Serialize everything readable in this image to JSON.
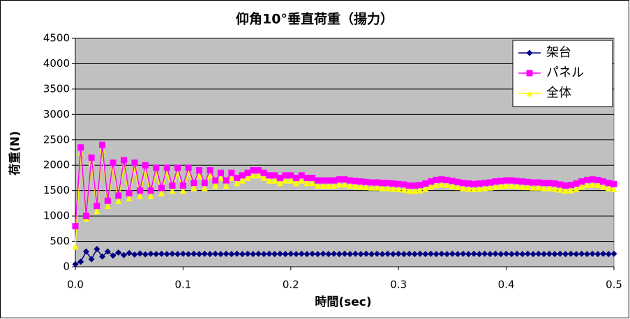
{
  "chart_data": {
    "type": "line",
    "title": "仰角10°垂直荷重（揚力）",
    "x_label": "時間(sec)",
    "y_label": "荷重(N)",
    "x": [
      0,
      0.005,
      0.01,
      0.015,
      0.02,
      0.025,
      0.03,
      0.035,
      0.04,
      0.045,
      0.05,
      0.055,
      0.06,
      0.065,
      0.07,
      0.075,
      0.08,
      0.085,
      0.09,
      0.095,
      0.1,
      0.105,
      0.11,
      0.115,
      0.12,
      0.125,
      0.13,
      0.135,
      0.14,
      0.145,
      0.15,
      0.155,
      0.16,
      0.165,
      0.17,
      0.175,
      0.18,
      0.185,
      0.19,
      0.195,
      0.2,
      0.205,
      0.21,
      0.215,
      0.22,
      0.225,
      0.23,
      0.235,
      0.24,
      0.245,
      0.25,
      0.255,
      0.26,
      0.265,
      0.27,
      0.275,
      0.28,
      0.285,
      0.29,
      0.295,
      0.3,
      0.305,
      0.31,
      0.315,
      0.32,
      0.325,
      0.33,
      0.335,
      0.34,
      0.345,
      0.35,
      0.355,
      0.36,
      0.365,
      0.37,
      0.375,
      0.38,
      0.385,
      0.39,
      0.395,
      0.4,
      0.405,
      0.41,
      0.415,
      0.42,
      0.425,
      0.43,
      0.435,
      0.44,
      0.445,
      0.45,
      0.455,
      0.46,
      0.465,
      0.47,
      0.475,
      0.48,
      0.485,
      0.49,
      0.495,
      0.5
    ],
    "series": [
      {
        "name": "架台",
        "color": "#000080",
        "marker": "diamond",
        "values": [
          50,
          100,
          300,
          150,
          350,
          200,
          300,
          220,
          280,
          230,
          270,
          240,
          260,
          245,
          255,
          250,
          255,
          250,
          255,
          250,
          255,
          250,
          255,
          250,
          255,
          250,
          255,
          250,
          255,
          250,
          255,
          250,
          255,
          250,
          255,
          250,
          255,
          250,
          255,
          250,
          255,
          250,
          255,
          250,
          255,
          250,
          255,
          250,
          255,
          250,
          255,
          250,
          255,
          250,
          255,
          250,
          255,
          250,
          255,
          250,
          255,
          250,
          255,
          250,
          255,
          250,
          255,
          250,
          255,
          250,
          255,
          250,
          255,
          250,
          255,
          250,
          255,
          250,
          255,
          250,
          255,
          250,
          255,
          250,
          255,
          250,
          255,
          250,
          255,
          250,
          255,
          250,
          255,
          250,
          255,
          250,
          255,
          250,
          255,
          250,
          255
        ]
      },
      {
        "name": "パネル",
        "color": "#ff00ff",
        "marker": "square",
        "values": [
          800,
          2350,
          1000,
          2150,
          1200,
          2400,
          1300,
          2050,
          1400,
          2100,
          1450,
          2050,
          1500,
          2000,
          1500,
          1950,
          1550,
          1950,
          1600,
          1950,
          1600,
          1950,
          1650,
          1900,
          1650,
          1900,
          1700,
          1850,
          1700,
          1850,
          1750,
          1800,
          1850,
          1900,
          1900,
          1850,
          1800,
          1800,
          1750,
          1800,
          1800,
          1750,
          1800,
          1750,
          1750,
          1700,
          1700,
          1700,
          1700,
          1720,
          1720,
          1700,
          1690,
          1680,
          1670,
          1660,
          1660,
          1650,
          1650,
          1640,
          1630,
          1620,
          1600,
          1600,
          1610,
          1640,
          1680,
          1710,
          1720,
          1710,
          1690,
          1670,
          1650,
          1640,
          1630,
          1640,
          1650,
          1660,
          1680,
          1690,
          1700,
          1700,
          1690,
          1680,
          1670,
          1660,
          1660,
          1650,
          1650,
          1640,
          1620,
          1600,
          1610,
          1640,
          1680,
          1710,
          1720,
          1710,
          1680,
          1650,
          1630
        ]
      },
      {
        "name": "全体",
        "color": "#ffff00",
        "marker": "triangle",
        "values": [
          400,
          2250,
          950,
          2050,
          1100,
          2300,
          1200,
          1950,
          1300,
          2000,
          1350,
          1950,
          1400,
          1900,
          1400,
          1850,
          1450,
          1850,
          1500,
          1850,
          1500,
          1850,
          1550,
          1800,
          1550,
          1800,
          1600,
          1750,
          1600,
          1750,
          1650,
          1700,
          1750,
          1800,
          1800,
          1750,
          1700,
          1700,
          1650,
          1700,
          1700,
          1650,
          1700,
          1650,
          1650,
          1600,
          1600,
          1600,
          1600,
          1620,
          1620,
          1600,
          1590,
          1580,
          1570,
          1560,
          1560,
          1550,
          1550,
          1540,
          1530,
          1520,
          1500,
          1500,
          1510,
          1540,
          1580,
          1610,
          1620,
          1610,
          1590,
          1570,
          1550,
          1540,
          1530,
          1540,
          1550,
          1560,
          1580,
          1590,
          1600,
          1600,
          1590,
          1580,
          1570,
          1560,
          1560,
          1550,
          1550,
          1540,
          1520,
          1500,
          1510,
          1540,
          1580,
          1610,
          1620,
          1610,
          1580,
          1550,
          1530
        ]
      }
    ],
    "xlim": [
      0,
      0.5
    ],
    "xticks": [
      {
        "value": 0,
        "label": "0.0"
      },
      0.1,
      0.2,
      0.3,
      0.4,
      0.5
    ],
    "ylim": [
      0,
      4500
    ],
    "yticks": [
      0,
      500,
      1000,
      1500,
      2000,
      2500,
      3000,
      3500,
      4000,
      4500
    ],
    "grid": true,
    "legend": "top-right",
    "plot_background": "#c0c0c0"
  }
}
